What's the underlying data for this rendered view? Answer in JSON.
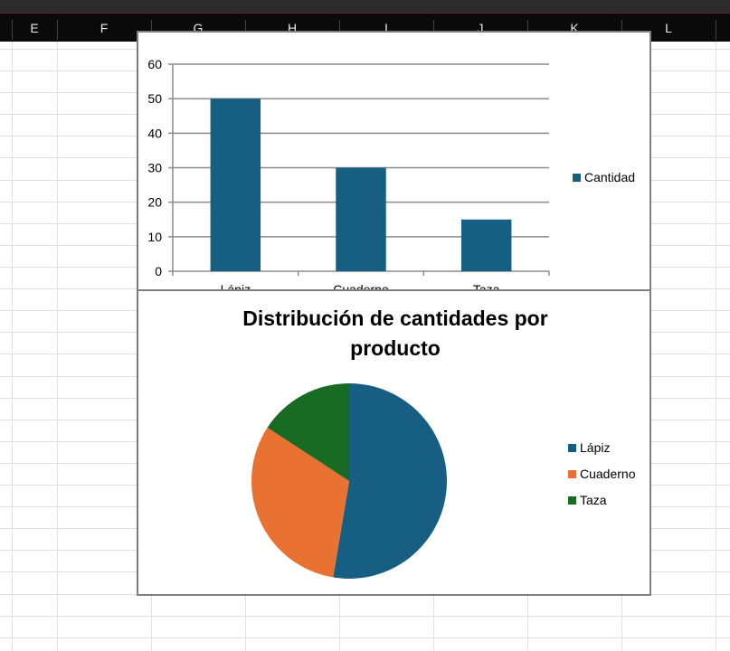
{
  "sheet": {
    "columns": [
      "E",
      "F",
      "G",
      "H",
      "I",
      "J",
      "K",
      "L"
    ]
  },
  "chart_data": [
    {
      "type": "bar",
      "title": "",
      "categories": [
        "Lápiz",
        "Cuaderno",
        "Taza"
      ],
      "series": [
        {
          "name": "Cantidad",
          "values": [
            50,
            30,
            15
          ],
          "color": "#175f82"
        }
      ],
      "ylim": [
        0,
        60
      ],
      "yticks": [
        0,
        10,
        20,
        30,
        40,
        50,
        60
      ],
      "grid": true,
      "legend": "right"
    },
    {
      "type": "pie",
      "title": "Distribución de cantidades por producto",
      "title_lines": [
        "Distribución de cantidades por",
        "producto"
      ],
      "labels": [
        "Lápiz",
        "Cuaderno",
        "Taza"
      ],
      "values": [
        50,
        30,
        15
      ],
      "colors": [
        "#175f82",
        "#e97132",
        "#196b24"
      ],
      "legend": "right"
    }
  ]
}
